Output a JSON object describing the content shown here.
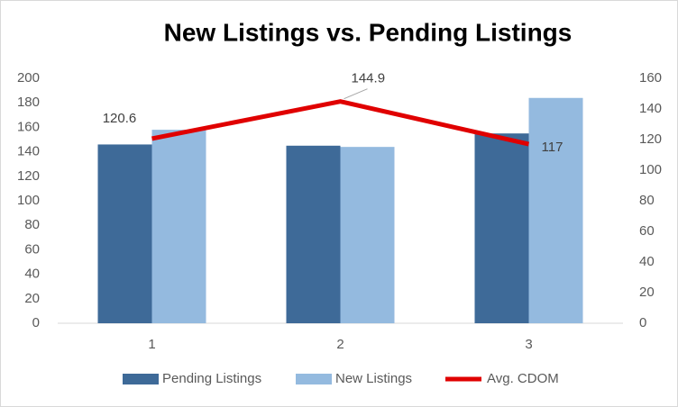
{
  "chart_data": {
    "type": "bar_line",
    "title": "New Listings vs. Pending Listings",
    "categories": [
      "1",
      "2",
      "3"
    ],
    "series": [
      {
        "name": "Pending Listings",
        "type": "bar",
        "color": "#3e6a98",
        "values": [
          146,
          145,
          155
        ]
      },
      {
        "name": "New Listings",
        "type": "bar",
        "color": "#94badf",
        "values": [
          158,
          144,
          184
        ]
      },
      {
        "name": "Avg. CDOM",
        "type": "line",
        "axis": "y2",
        "color": "#e00000",
        "values": [
          120.6,
          144.9,
          117
        ],
        "data_labels": true
      }
    ],
    "ylim": [
      0,
      200
    ],
    "yticks": [
      0,
      20,
      40,
      60,
      80,
      100,
      120,
      140,
      160,
      180,
      200
    ],
    "y2lim": [
      0,
      160
    ],
    "y2ticks": [
      0,
      20,
      40,
      60,
      80,
      100,
      120,
      140,
      160
    ],
    "grid": false,
    "legend": "bottom"
  }
}
